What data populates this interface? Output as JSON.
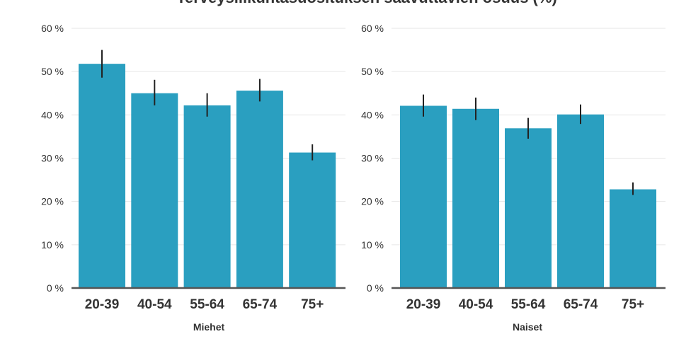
{
  "chart_data": {
    "type": "bar",
    "title": "Terveysliikuntasuosituksen saavuttavien osuus (%)",
    "ylim": [
      0,
      60
    ],
    "yticks": [
      0,
      10,
      20,
      30,
      40,
      50,
      60
    ],
    "ytick_labels": [
      "0 %",
      "10 %",
      "20 %",
      "30 %",
      "40 %",
      "50 %",
      "60 %"
    ],
    "grid": true,
    "bar_color": "#2a9fc0",
    "panels": [
      {
        "name": "Miehet",
        "categories": [
          "20-39",
          "40-54",
          "55-64",
          "65-74",
          "75+"
        ],
        "values": [
          51.8,
          45.0,
          42.2,
          45.6,
          31.3
        ],
        "error_low": [
          48.6,
          42.2,
          39.6,
          43.1,
          29.5
        ],
        "error_high": [
          55.0,
          48.1,
          45.0,
          48.3,
          33.2
        ]
      },
      {
        "name": "Naiset",
        "categories": [
          "20-39",
          "40-54",
          "55-64",
          "65-74",
          "75+"
        ],
        "values": [
          42.1,
          41.4,
          36.9,
          40.1,
          22.8
        ],
        "error_low": [
          39.6,
          38.8,
          34.5,
          37.9,
          21.5
        ],
        "error_high": [
          44.7,
          44.0,
          39.3,
          42.4,
          24.4
        ]
      }
    ]
  }
}
